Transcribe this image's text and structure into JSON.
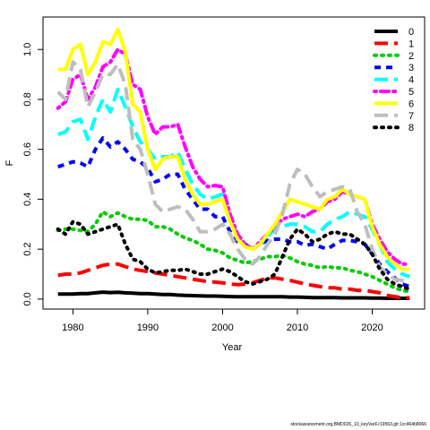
{
  "chart_data": {
    "type": "line",
    "xlabel": "Year",
    "ylabel": "F",
    "xlim": [
      1976,
      2027
    ],
    "ylim": [
      -0.04,
      1.13
    ],
    "xticks": [
      1980,
      1990,
      2000,
      2010,
      2020
    ],
    "yticks": [
      0.0,
      0.2,
      0.4,
      0.6,
      0.8,
      1.0
    ],
    "legend_position": "top-right",
    "x": [
      1978,
      1979,
      1980,
      1981,
      1982,
      1983,
      1984,
      1985,
      1986,
      1987,
      1988,
      1989,
      1990,
      1991,
      1992,
      1993,
      1994,
      1995,
      1996,
      1997,
      1998,
      1999,
      2000,
      2001,
      2002,
      2003,
      2004,
      2005,
      2006,
      2007,
      2008,
      2009,
      2010,
      2011,
      2012,
      2013,
      2014,
      2015,
      2016,
      2017,
      2018,
      2019,
      2020,
      2021,
      2022,
      2023,
      2024,
      2025
    ],
    "series": [
      {
        "name": "0",
        "color": "#000000",
        "dash": "solid",
        "values": [
          0.02,
          0.02,
          0.02,
          0.022,
          0.022,
          0.025,
          0.028,
          0.026,
          0.027,
          0.025,
          0.024,
          0.022,
          0.022,
          0.02,
          0.018,
          0.018,
          0.016,
          0.015,
          0.014,
          0.013,
          0.012,
          0.012,
          0.011,
          0.01,
          0.009,
          0.009,
          0.009,
          0.009,
          0.009,
          0.009,
          0.009,
          0.008,
          0.008,
          0.007,
          0.006,
          0.006,
          0.006,
          0.006,
          0.005,
          0.005,
          0.005,
          0.005,
          0.004,
          0.004,
          0.003,
          0.003,
          0.003,
          0.003
        ]
      },
      {
        "name": "1",
        "color": "#ff0000",
        "dash": "long",
        "values": [
          0.095,
          0.1,
          0.1,
          0.105,
          0.115,
          0.125,
          0.135,
          0.14,
          0.14,
          0.13,
          0.12,
          0.115,
          0.11,
          0.105,
          0.1,
          0.095,
          0.09,
          0.085,
          0.08,
          0.075,
          0.07,
          0.068,
          0.065,
          0.06,
          0.058,
          0.06,
          0.065,
          0.075,
          0.085,
          0.085,
          0.08,
          0.075,
          0.068,
          0.06,
          0.055,
          0.05,
          0.045,
          0.045,
          0.04,
          0.04,
          0.035,
          0.035,
          0.03,
          0.025,
          0.015,
          0.01,
          0.005,
          0.005
        ]
      },
      {
        "name": "2",
        "color": "#00cd00",
        "dash": "dot",
        "values": [
          0.275,
          0.28,
          0.28,
          0.275,
          0.27,
          0.3,
          0.35,
          0.33,
          0.345,
          0.33,
          0.32,
          0.32,
          0.315,
          0.29,
          0.29,
          0.28,
          0.26,
          0.245,
          0.235,
          0.22,
          0.2,
          0.195,
          0.185,
          0.165,
          0.155,
          0.145,
          0.15,
          0.16,
          0.17,
          0.17,
          0.175,
          0.165,
          0.15,
          0.14,
          0.135,
          0.125,
          0.13,
          0.125,
          0.125,
          0.115,
          0.11,
          0.1,
          0.09,
          0.075,
          0.06,
          0.045,
          0.035,
          0.03
        ]
      },
      {
        "name": "3",
        "color": "#0000ff",
        "dash": "dash",
        "values": [
          0.53,
          0.54,
          0.55,
          0.545,
          0.53,
          0.6,
          0.645,
          0.61,
          0.63,
          0.6,
          0.56,
          0.55,
          0.525,
          0.47,
          0.48,
          0.5,
          0.5,
          0.44,
          0.4,
          0.36,
          0.36,
          0.33,
          0.33,
          0.27,
          0.23,
          0.22,
          0.2,
          0.22,
          0.235,
          0.24,
          0.24,
          0.23,
          0.23,
          0.215,
          0.22,
          0.21,
          0.2,
          0.22,
          0.235,
          0.235,
          0.23,
          0.22,
          0.18,
          0.14,
          0.11,
          0.085,
          0.06,
          0.05
        ]
      },
      {
        "name": "4",
        "color": "#00ffff",
        "dash": "longdash",
        "values": [
          0.66,
          0.67,
          0.71,
          0.72,
          0.64,
          0.73,
          0.8,
          0.75,
          0.84,
          0.77,
          0.69,
          0.63,
          0.6,
          0.56,
          0.57,
          0.57,
          0.59,
          0.52,
          0.46,
          0.42,
          0.4,
          0.41,
          0.42,
          0.32,
          0.25,
          0.21,
          0.2,
          0.22,
          0.25,
          0.28,
          0.29,
          0.3,
          0.3,
          0.29,
          0.27,
          0.27,
          0.3,
          0.32,
          0.33,
          0.35,
          0.34,
          0.33,
          0.28,
          0.22,
          0.15,
          0.12,
          0.1,
          0.09
        ]
      },
      {
        "name": "5",
        "color": "#ff00ff",
        "dash": "dashdot",
        "values": [
          0.765,
          0.79,
          0.88,
          0.9,
          0.8,
          0.85,
          0.93,
          0.95,
          1.0,
          0.98,
          0.86,
          0.84,
          0.73,
          0.66,
          0.69,
          0.69,
          0.7,
          0.61,
          0.53,
          0.48,
          0.45,
          0.455,
          0.45,
          0.34,
          0.26,
          0.22,
          0.2,
          0.23,
          0.26,
          0.29,
          0.32,
          0.33,
          0.34,
          0.33,
          0.35,
          0.36,
          0.39,
          0.4,
          0.43,
          0.42,
          0.41,
          0.4,
          0.3,
          0.24,
          0.19,
          0.16,
          0.14,
          0.14
        ]
      },
      {
        "name": "6",
        "color": "#ffff00",
        "dash": "solid",
        "values": [
          0.92,
          0.92,
          1.0,
          1.02,
          0.9,
          0.95,
          1.03,
          1.02,
          1.08,
          0.99,
          0.78,
          0.75,
          0.6,
          0.52,
          0.56,
          0.57,
          0.57,
          0.48,
          0.42,
          0.38,
          0.38,
          0.39,
          0.4,
          0.31,
          0.24,
          0.21,
          0.2,
          0.22,
          0.26,
          0.3,
          0.35,
          0.4,
          0.39,
          0.38,
          0.37,
          0.36,
          0.4,
          0.41,
          0.44,
          0.42,
          0.41,
          0.4,
          0.29,
          0.22,
          0.17,
          0.14,
          0.12,
          0.12
        ]
      },
      {
        "name": "7",
        "color": "#bebebe",
        "dash": "longdash",
        "values": [
          0.83,
          0.8,
          0.95,
          0.92,
          0.77,
          0.83,
          0.9,
          0.9,
          0.94,
          0.86,
          0.64,
          0.6,
          0.5,
          0.38,
          0.35,
          0.36,
          0.37,
          0.36,
          0.32,
          0.27,
          0.27,
          0.28,
          0.3,
          0.26,
          0.2,
          0.16,
          0.14,
          0.17,
          0.22,
          0.26,
          0.34,
          0.46,
          0.52,
          0.5,
          0.45,
          0.41,
          0.43,
          0.44,
          0.45,
          0.44,
          0.35,
          0.3,
          0.2,
          0.13,
          0.1,
          0.08,
          0.075,
          0.07
        ]
      },
      {
        "name": "8",
        "color": "#000000",
        "dash": "dot",
        "values": [
          0.28,
          0.26,
          0.31,
          0.3,
          0.26,
          0.27,
          0.28,
          0.29,
          0.3,
          0.22,
          0.16,
          0.15,
          0.12,
          0.105,
          0.11,
          0.115,
          0.115,
          0.12,
          0.11,
          0.1,
          0.1,
          0.11,
          0.12,
          0.11,
          0.09,
          0.07,
          0.06,
          0.07,
          0.08,
          0.1,
          0.17,
          0.24,
          0.28,
          0.26,
          0.23,
          0.24,
          0.26,
          0.27,
          0.26,
          0.26,
          0.24,
          0.22,
          0.18,
          0.12,
          0.08,
          0.06,
          0.05,
          0.04
        ]
      }
    ]
  },
  "footer_text": "stockassessment.org,BMD026_10_keyVarF,r19563,git:1cc464b8066"
}
